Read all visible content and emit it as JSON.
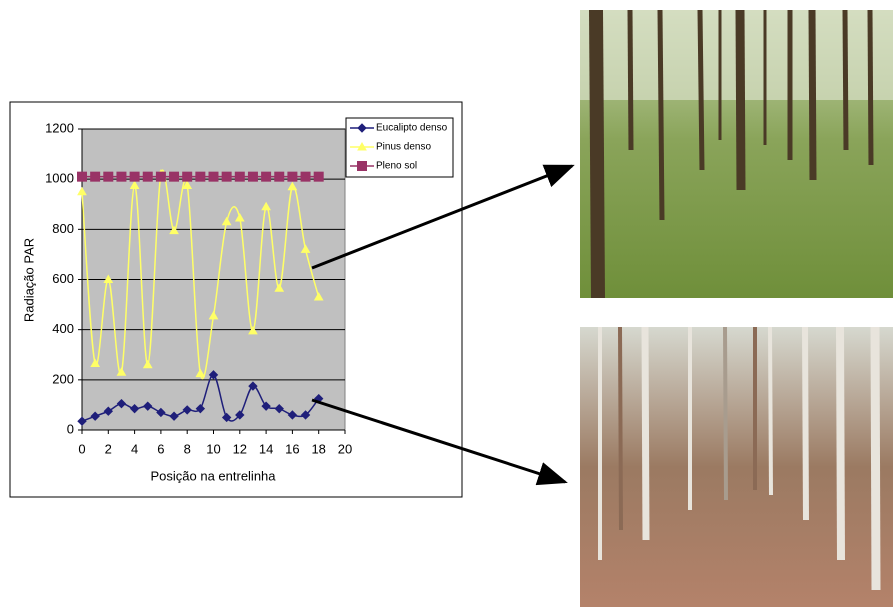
{
  "chart_data": {
    "type": "line",
    "smooth": true,
    "xlabel": "Posição na entrelinha",
    "ylabel": "Radiação PAR",
    "x": [
      0,
      1,
      2,
      3,
      4,
      5,
      6,
      7,
      8,
      9,
      10,
      11,
      12,
      13,
      14,
      15,
      16,
      17,
      18
    ],
    "xlim": [
      0,
      20
    ],
    "xticks": [
      0,
      2,
      4,
      6,
      8,
      10,
      12,
      14,
      16,
      18,
      20
    ],
    "ylim": [
      0,
      1200
    ],
    "yticks": [
      0,
      200,
      400,
      600,
      800,
      1000,
      1200
    ],
    "grid": true,
    "legend": "upper right",
    "series": [
      {
        "name": "Eucalipto denso",
        "color": "#1f1f7a",
        "marker": "diamond",
        "values": [
          35,
          55,
          75,
          105,
          85,
          95,
          70,
          55,
          80,
          85,
          220,
          50,
          60,
          175,
          95,
          85,
          60,
          60,
          125
        ]
      },
      {
        "name": "Pinus denso",
        "color": "#ffff66",
        "marker": "triangle",
        "values": [
          950,
          265,
          600,
          230,
          975,
          260,
          1020,
          795,
          975,
          225,
          455,
          830,
          845,
          395,
          890,
          565,
          970,
          720,
          530
        ]
      },
      {
        "name": "Pleno sol",
        "color": "#993366",
        "marker": "square",
        "values": [
          1010,
          1010,
          1010,
          1010,
          1010,
          1010,
          1010,
          1010,
          1010,
          1010,
          1010,
          1010,
          1010,
          1010,
          1010,
          1010,
          1010,
          1010,
          1010
        ]
      }
    ]
  }
}
